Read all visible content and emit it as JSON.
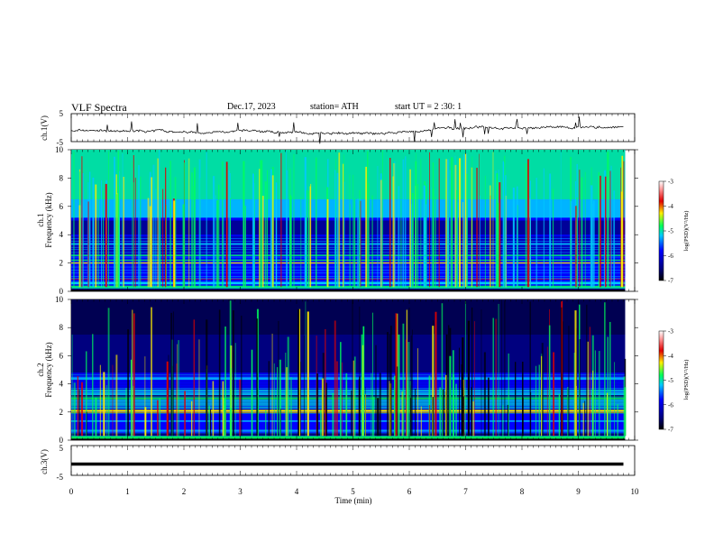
{
  "header": {
    "title": "VLF Spectra",
    "date": "Dec.17, 2023",
    "station": "station= ATH",
    "start": "start UT = 2 :30: 1"
  },
  "chart_data": [
    {
      "type": "line",
      "panel": "ch1-waveform",
      "ylabel": "ch.1(V)",
      "ylim": [
        -5,
        5
      ],
      "yticks": [
        "5",
        "-5"
      ],
      "xlim": [
        0,
        10
      ],
      "description_level": "signal fluctuates around -1 V with occasional spikes",
      "color": "#000000"
    },
    {
      "type": "heatmap",
      "panel": "ch1-spectrogram",
      "ylabel": "Frequency (kHz)",
      "panel_label": "ch.1",
      "ylim": [
        0,
        10
      ],
      "yticks": [
        "0",
        "2",
        "4",
        "6",
        "8",
        "10"
      ],
      "xlim": [
        0,
        9.8
      ],
      "colorbar": {
        "label": "log(PSD)(V²/Hz)",
        "range": [
          -7,
          -3
        ],
        "ticks": [
          "-3",
          "-4",
          "-5",
          "-6",
          "-7"
        ]
      }
    },
    {
      "type": "heatmap",
      "panel": "ch2-spectrogram",
      "ylabel": "Frequency (kHz)",
      "panel_label": "ch.2",
      "ylim": [
        0,
        10
      ],
      "yticks": [
        "0",
        "2",
        "4",
        "6",
        "8",
        "10"
      ],
      "xlim": [
        0,
        9.8
      ],
      "colorbar": {
        "label": "log(PSD)(V²/Hz)",
        "range": [
          -7,
          -3
        ],
        "ticks": [
          "-3",
          "-4",
          "-5",
          "-6",
          "-7"
        ]
      }
    },
    {
      "type": "line",
      "panel": "ch3-waveform",
      "ylabel": "ch.3(V)",
      "ylim": [
        -5,
        5
      ],
      "yticks": [
        "5",
        "-5"
      ],
      "xlim": [
        0,
        10
      ],
      "level": -1.2,
      "color": "#000000"
    }
  ],
  "xaxis": {
    "label": "Time (min)",
    "ticks": [
      "0",
      "1",
      "2",
      "3",
      "4",
      "5",
      "6",
      "7",
      "8",
      "9",
      "10"
    ]
  },
  "colors": {
    "deep": "#00007f",
    "blue": "#0000ff",
    "cyan": "#00c8ff",
    "green": "#00ff5a",
    "yellow": "#ffee00",
    "red": "#e00000"
  }
}
